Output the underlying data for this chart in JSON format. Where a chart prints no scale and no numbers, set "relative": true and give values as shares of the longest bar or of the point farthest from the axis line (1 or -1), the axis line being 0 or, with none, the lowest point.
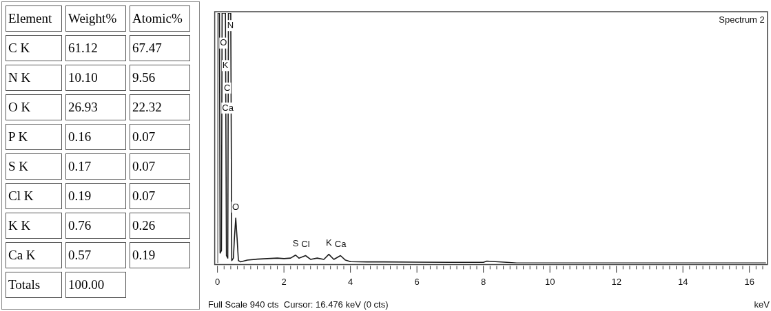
{
  "chart_data": [
    {
      "type": "other",
      "legend_title": "Element",
      "categories": [
        "C K",
        "N K",
        "O K",
        "P K",
        "S K",
        "Cl K",
        "K K",
        "Ca K",
        "Totals"
      ],
      "series": [
        {
          "name": "Weight%",
          "values": [
            61.12,
            10.1,
            26.93,
            0.16,
            0.17,
            0.19,
            0.76,
            0.57,
            100.0
          ],
          "value_labels": [
            "61.12",
            "10.10",
            "26.93",
            "0.16",
            "0.17",
            "0.19",
            "0.76",
            "0.57",
            "100.00"
          ]
        },
        {
          "name": "Atomic%",
          "values": [
            67.47,
            9.56,
            22.32,
            0.07,
            0.07,
            0.07,
            0.26,
            0.19,
            null
          ],
          "value_labels": [
            "67.47",
            "9.56",
            "22.32",
            "0.07",
            "0.07",
            "0.07",
            "0.26",
            "0.19",
            null
          ]
        }
      ]
    },
    {
      "type": "line",
      "relative": true,
      "title": "Spectrum 2",
      "xlabel": "keV",
      "xlim": [
        0,
        16.5
      ],
      "xticks": [
        0,
        {
          "value": 0.2,
          "label": null
        },
        {
          "value": 0.4,
          "label": null
        },
        {
          "value": 0.6,
          "label": null
        },
        {
          "value": 0.8,
          "label": null
        },
        {
          "value": 1,
          "label": null
        },
        {
          "value": 1.2,
          "label": null
        },
        {
          "value": 1.4,
          "label": null
        },
        {
          "value": 1.6,
          "label": null
        },
        {
          "value": 1.8,
          "label": null
        },
        2,
        {
          "value": 2.2,
          "label": null
        },
        {
          "value": 2.4,
          "label": null
        },
        {
          "value": 2.6,
          "label": null
        },
        {
          "value": 2.8,
          "label": null
        },
        {
          "value": 3,
          "label": null
        },
        {
          "value": 3.2,
          "label": null
        },
        {
          "value": 3.4,
          "label": null
        },
        {
          "value": 3.6,
          "label": null
        },
        {
          "value": 3.8,
          "label": null
        },
        4,
        {
          "value": 4.2,
          "label": null
        },
        {
          "value": 4.4,
          "label": null
        },
        {
          "value": 4.6,
          "label": null
        },
        {
          "value": 4.8,
          "label": null
        },
        {
          "value": 5,
          "label": null
        },
        {
          "value": 5.2,
          "label": null
        },
        {
          "value": 5.4,
          "label": null
        },
        {
          "value": 5.6,
          "label": null
        },
        {
          "value": 5.8,
          "label": null
        },
        6,
        {
          "value": 6.2,
          "label": null
        },
        {
          "value": 6.4,
          "label": null
        },
        {
          "value": 6.6,
          "label": null
        },
        {
          "value": 6.8,
          "label": null
        },
        {
          "value": 7,
          "label": null
        },
        {
          "value": 7.2,
          "label": null
        },
        {
          "value": 7.4,
          "label": null
        },
        {
          "value": 7.6,
          "label": null
        },
        {
          "value": 7.8,
          "label": null
        },
        8,
        {
          "value": 8.2,
          "label": null
        },
        {
          "value": 8.4,
          "label": null
        },
        {
          "value": 8.6,
          "label": null
        },
        {
          "value": 8.8,
          "label": null
        },
        {
          "value": 9,
          "label": null
        },
        {
          "value": 9.2,
          "label": null
        },
        {
          "value": 9.4,
          "label": null
        },
        {
          "value": 9.6,
          "label": null
        },
        {
          "value": 9.8,
          "label": null
        },
        10,
        {
          "value": 10.2,
          "label": null
        },
        {
          "value": 10.4,
          "label": null
        },
        {
          "value": 10.6,
          "label": null
        },
        {
          "value": 10.8,
          "label": null
        },
        {
          "value": 11,
          "label": null
        },
        {
          "value": 11.2,
          "label": null
        },
        {
          "value": 11.4,
          "label": null
        },
        {
          "value": 11.6,
          "label": null
        },
        {
          "value": 11.8,
          "label": null
        },
        12,
        {
          "value": 12.2,
          "label": null
        },
        {
          "value": 12.4,
          "label": null
        },
        {
          "value": 12.6,
          "label": null
        },
        {
          "value": 12.8,
          "label": null
        },
        {
          "value": 13,
          "label": null
        },
        {
          "value": 13.2,
          "label": null
        },
        {
          "value": 13.4,
          "label": null
        },
        {
          "value": 13.6,
          "label": null
        },
        {
          "value": 13.8,
          "label": null
        },
        14,
        {
          "value": 14.2,
          "label": null
        },
        {
          "value": 14.4,
          "label": null
        },
        {
          "value": 14.6,
          "label": null
        },
        {
          "value": 14.8,
          "label": null
        },
        {
          "value": 15,
          "label": null
        },
        {
          "value": 15.2,
          "label": null
        },
        {
          "value": 15.4,
          "label": null
        },
        {
          "value": 15.6,
          "label": null
        },
        {
          "value": 15.8,
          "label": null
        },
        16,
        {
          "value": 16.2,
          "label": null
        },
        {
          "value": 16.4,
          "label": null
        }
      ],
      "x": [
        0,
        0.01,
        0.06,
        0.08,
        0.12,
        0.14,
        0.24,
        0.27,
        0.31,
        0.33,
        0.4,
        0.43,
        0.48,
        0.51,
        0.55,
        0.59,
        0.63,
        0.7,
        0.9,
        1.2,
        1.5,
        1.8,
        2.0,
        2.2,
        2.35,
        2.45,
        2.65,
        2.8,
        3.0,
        3.2,
        3.35,
        3.5,
        3.7,
        3.85,
        4.0,
        4.5,
        5,
        6,
        7,
        8,
        8.1,
        8.7,
        9,
        12,
        16.5
      ],
      "series": [
        {
          "color": "#1a1a1a",
          "values": [
            0,
            1,
            1,
            0.04,
            0.05,
            1,
            1,
            0.03,
            0.02,
            1,
            1,
            0.01,
            0.02,
            0.1,
            0.18,
            0.1,
            0.01,
            0.005,
            0.012,
            0.016,
            0.018,
            0.02,
            0.018,
            0.02,
            0.032,
            0.02,
            0.03,
            0.015,
            0.02,
            0.015,
            0.035,
            0.015,
            0.03,
            0.012,
            0.006,
            0.005,
            0.005,
            0.004,
            0.003,
            0.003,
            0.008,
            0.003,
            0,
            0,
            0
          ]
        }
      ],
      "annotations": [
        {
          "text": "N",
          "x": 0.39,
          "y": 0.95
        },
        {
          "text": "O",
          "x": 0.18,
          "y": 0.88
        },
        {
          "text": "K",
          "x": 0.24,
          "y": 0.79
        },
        {
          "text": "C",
          "x": 0.29,
          "y": 0.7
        },
        {
          "text": "Ca",
          "x": 0.31,
          "y": 0.62
        },
        {
          "text": "O",
          "x": 0.55,
          "y": 0.18
        },
        {
          "text": "S",
          "x": 2.35,
          "y": 0.032
        },
        {
          "text": "Cl",
          "x": 2.65,
          "y": 0.03
        },
        {
          "text": "K",
          "x": 3.35,
          "y": 0.035
        },
        {
          "text": "Ca",
          "x": 3.7,
          "y": 0.03
        },
        "Full Scale 940 cts  Cursor: 16.476 keV (0 cts)"
      ]
    }
  ]
}
